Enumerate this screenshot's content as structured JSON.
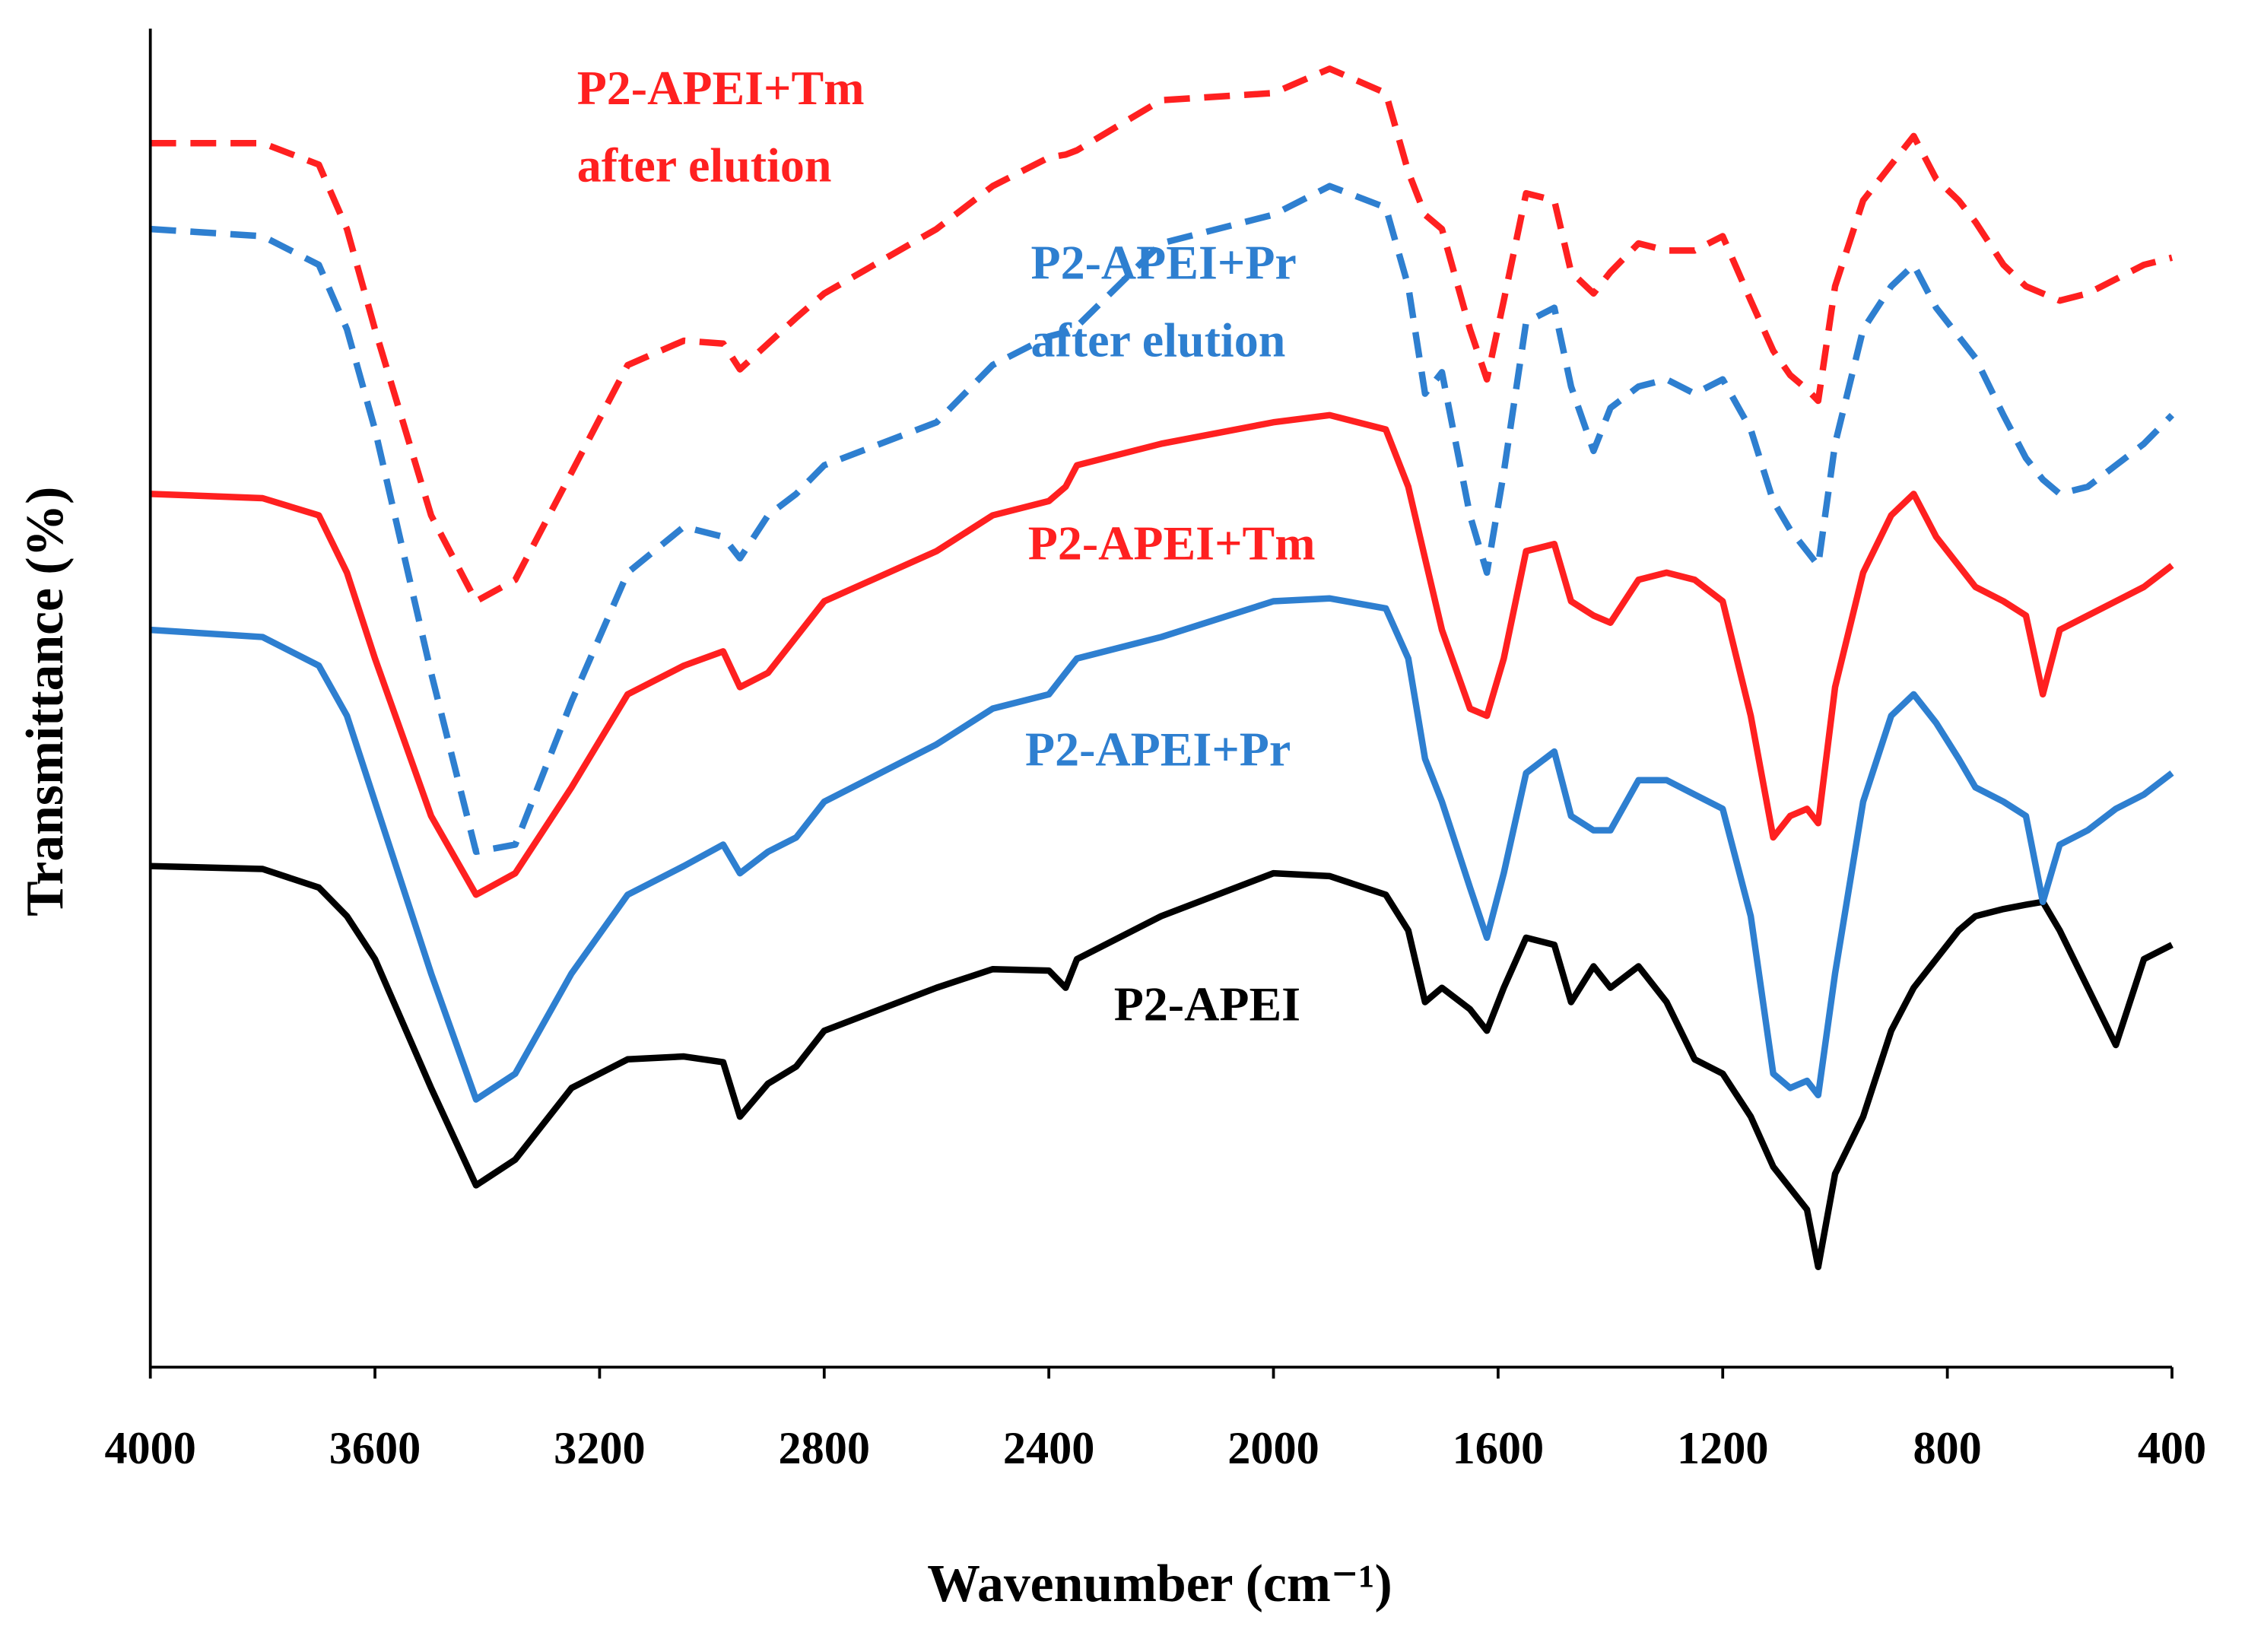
{
  "chart_data": {
    "type": "line",
    "xlabel": "Wavenumber (cm⁻¹)",
    "ylabel": "Transmittance  (%)",
    "x": [
      4000,
      3800,
      3700,
      3650,
      3600,
      3500,
      3420,
      3350,
      3250,
      3150,
      3050,
      2980,
      2950,
      2900,
      2850,
      2800,
      2600,
      2500,
      2400,
      2370,
      2350,
      2200,
      2000,
      1900,
      1800,
      1760,
      1730,
      1700,
      1650,
      1620,
      1590,
      1550,
      1500,
      1470,
      1430,
      1400,
      1350,
      1300,
      1250,
      1200,
      1150,
      1110,
      1080,
      1050,
      1030,
      1000,
      950,
      900,
      860,
      820,
      780,
      750,
      700,
      660,
      630,
      600,
      550,
      500,
      450,
      400
    ],
    "xlim": [
      4000,
      400
    ],
    "xticks": [
      4000,
      3600,
      3200,
      2800,
      2400,
      2000,
      1600,
      1200,
      800,
      400
    ],
    "ylim": [
      0,
      935
    ],
    "series": [
      {
        "name": [
          "P2-APEI"
        ],
        "color": "#000000",
        "dash": false,
        "values": [
          350,
          348,
          335,
          315,
          285,
          195,
          127,
          145,
          195,
          215,
          217,
          213,
          175,
          198,
          210,
          235,
          265,
          278,
          277,
          265,
          285,
          315,
          345,
          343,
          330,
          305,
          255,
          265,
          250,
          235,
          265,
          300,
          295,
          255,
          280,
          265,
          280,
          255,
          215,
          205,
          175,
          140,
          125,
          110,
          70,
          135,
          175,
          235,
          265,
          285,
          305,
          315,
          320,
          323,
          325,
          305,
          265,
          225,
          285,
          295
        ]
      },
      {
        "name": [
          "P2-APEI+Pr"
        ],
        "color": "#2e7fd0",
        "dash": false,
        "values": [
          515,
          510,
          490,
          455,
          395,
          275,
          187,
          205,
          275,
          330,
          350,
          365,
          345,
          360,
          370,
          395,
          435,
          460,
          470,
          485,
          495,
          510,
          535,
          537,
          530,
          495,
          425,
          395,
          335,
          300,
          345,
          415,
          430,
          385,
          375,
          375,
          410,
          410,
          400,
          390,
          315,
          205,
          195,
          200,
          190,
          275,
          395,
          455,
          470,
          450,
          425,
          405,
          395,
          385,
          325,
          365,
          375,
          390,
          400,
          415
        ]
      },
      {
        "name": [
          "P2-APEI+Tm"
        ],
        "color": "#ff2020",
        "dash": false,
        "values": [
          610,
          607,
          595,
          555,
          495,
          385,
          330,
          345,
          405,
          470,
          490,
          500,
          475,
          485,
          510,
          535,
          570,
          595,
          605,
          615,
          630,
          645,
          660,
          665,
          655,
          615,
          565,
          515,
          460,
          455,
          495,
          570,
          575,
          535,
          525,
          520,
          550,
          555,
          550,
          535,
          455,
          370,
          385,
          390,
          380,
          475,
          555,
          595,
          610,
          580,
          560,
          545,
          535,
          525,
          470,
          515,
          525,
          535,
          545,
          560
        ]
      },
      {
        "name": [
          "P2-APEI+Pr",
          "after elution"
        ],
        "color": "#2e7fd0",
        "dash": true,
        "values": [
          795,
          790,
          770,
          725,
          655,
          485,
          360,
          365,
          465,
          555,
          587,
          580,
          565,
          595,
          610,
          630,
          660,
          700,
          720,
          723,
          727,
          785,
          805,
          825,
          810,
          755,
          680,
          695,
          595,
          555,
          625,
          730,
          740,
          685,
          640,
          670,
          685,
          690,
          680,
          690,
          655,
          605,
          585,
          570,
          560,
          645,
          725,
          755,
          770,
          740,
          720,
          705,
          665,
          635,
          620,
          610,
          615,
          630,
          645,
          665
        ]
      },
      {
        "name": [
          "P2-APEI+Tm",
          "after elution"
        ],
        "color": "#ff2020",
        "dash": true,
        "values": [
          855,
          855,
          840,
          795,
          725,
          595,
          535,
          550,
          625,
          700,
          717,
          715,
          697,
          715,
          733,
          750,
          795,
          825,
          845,
          847,
          850,
          885,
          890,
          907,
          890,
          835,
          805,
          795,
          725,
          690,
          745,
          820,
          815,
          765,
          750,
          765,
          785,
          780,
          780,
          790,
          745,
          710,
          693,
          683,
          675,
          755,
          815,
          840,
          860,
          830,
          815,
          800,
          770,
          755,
          750,
          745,
          750,
          760,
          770,
          775
        ]
      }
    ]
  }
}
